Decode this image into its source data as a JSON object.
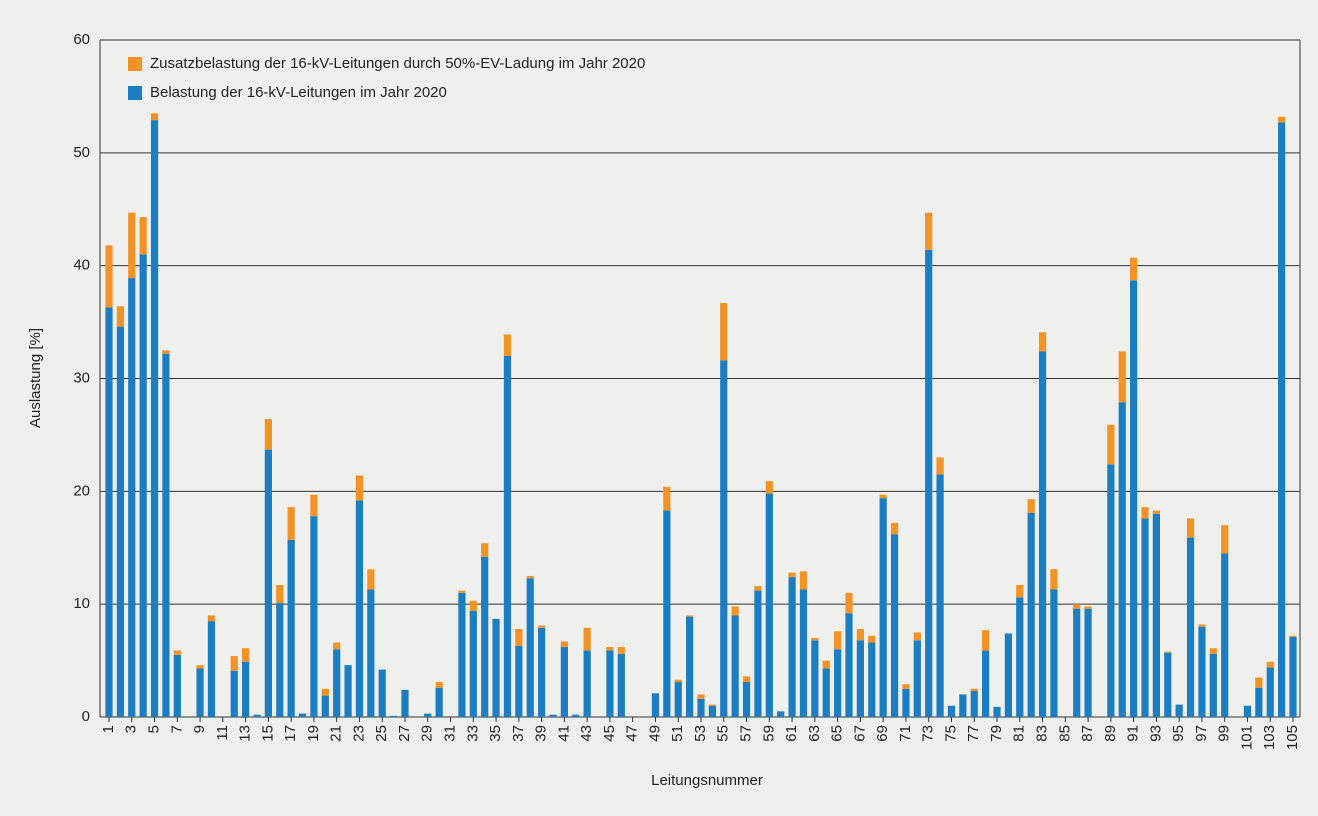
{
  "chart_data": {
    "type": "stacked_bar",
    "x_label": "Leitungsnummer",
    "y_label": "Auslastung [%]",
    "categories": [
      "1",
      null,
      "3",
      null,
      "5",
      null,
      "7",
      null,
      "9",
      null,
      "11",
      null,
      "13",
      null,
      "15",
      null,
      "17",
      null,
      "19",
      null,
      "21",
      null,
      "23",
      null,
      "25",
      null,
      "27",
      null,
      "29",
      null,
      "31",
      null,
      "33",
      null,
      "35",
      null,
      "37",
      null,
      "39",
      null,
      "41",
      null,
      "43",
      null,
      "45",
      null,
      "47",
      null,
      "49",
      null,
      "51",
      null,
      "53",
      null,
      "55",
      null,
      "57",
      null,
      "59",
      null,
      "61",
      null,
      "63",
      null,
      "65",
      null,
      "67",
      null,
      "69",
      null,
      "71",
      null,
      "73",
      null,
      "75",
      null,
      "77",
      null,
      "79",
      null,
      "81",
      null,
      "83",
      null,
      "85",
      null,
      "87",
      null,
      "89",
      null,
      "91",
      null,
      "93",
      null,
      "95",
      null,
      "97",
      null,
      "99",
      null,
      "101",
      null,
      "103",
      null,
      "105"
    ],
    "series": [
      {
        "name": "Belastung der 16-kV-Leitungen im Jahr 2020",
        "color": "#1b7ec2",
        "values": [
          36.3,
          34.6,
          38.9,
          41.0,
          52.9,
          32.2,
          5.5,
          0,
          4.3,
          8.5,
          0,
          4.1,
          4.9,
          0.2,
          23.7,
          10.1,
          15.7,
          0.3,
          17.8,
          1.9,
          6.0,
          4.6,
          19.2,
          11.3,
          4.2,
          0.1,
          2.4,
          0,
          0.3,
          2.6,
          0,
          11.0,
          9.4,
          14.2,
          8.7,
          32.0,
          6.3,
          12.3,
          7.9,
          0.2,
          6.2,
          0.2,
          5.9,
          0,
          5.9,
          5.6,
          0,
          0,
          2.1,
          18.3,
          3.1,
          8.9,
          1.6,
          1.0,
          31.6,
          9.0,
          3.1,
          11.2,
          19.8,
          0.5,
          12.4,
          11.3,
          6.8,
          4.3,
          6.0,
          9.2,
          6.8,
          6.6,
          19.4,
          16.2,
          2.5,
          6.8,
          41.4,
          21.5,
          1.0,
          2.0,
          2.3,
          5.9,
          0.9,
          7.4,
          10.6,
          18.1,
          32.4,
          11.3,
          0,
          9.6,
          9.6,
          0,
          22.4,
          27.9,
          38.7,
          17.6,
          18.0,
          5.7,
          1.1,
          15.9,
          8.0,
          5.6,
          14.5,
          0,
          1.0,
          2.6,
          4.4,
          52.7,
          7.1
        ]
      },
      {
        "name": "Zusatzbelastung der 16-kV-Leitungen durch 50%-EV-Ladung im Jahr 2020",
        "color": "#f39325",
        "values": [
          5.5,
          1.8,
          5.8,
          3.3,
          0.6,
          0.3,
          0.4,
          0,
          0.3,
          0.5,
          0,
          1.3,
          1.2,
          0,
          2.7,
          1.6,
          2.9,
          0,
          1.9,
          0.6,
          0.6,
          0,
          2.2,
          1.8,
          0,
          0,
          0,
          0,
          0,
          0.5,
          0,
          0.2,
          0.9,
          1.2,
          0,
          1.9,
          1.5,
          0.2,
          0.2,
          0,
          0.5,
          0,
          2.0,
          0,
          0.3,
          0.6,
          0,
          0,
          0,
          2.1,
          0.2,
          0.1,
          0.4,
          0.1,
          5.1,
          0.8,
          0.5,
          0.4,
          1.1,
          0,
          0.4,
          1.6,
          0.2,
          0.7,
          1.6,
          1.8,
          1.0,
          0.6,
          0.3,
          1.0,
          0.4,
          0.7,
          3.3,
          1.5,
          0,
          0,
          0.2,
          1.8,
          0,
          0,
          1.1,
          1.2,
          1.7,
          1.8,
          0,
          0.4,
          0.2,
          0,
          3.5,
          4.5,
          2.0,
          1.0,
          0.3,
          0.1,
          0,
          1.7,
          0.2,
          0.5,
          2.5,
          0,
          0,
          0.9,
          0.5,
          0.5,
          0.1
        ]
      }
    ],
    "ylim": [
      0,
      60
    ],
    "yticks": [
      0,
      10,
      20,
      30,
      40,
      50,
      60
    ],
    "grid": true,
    "legend": "top-left"
  }
}
